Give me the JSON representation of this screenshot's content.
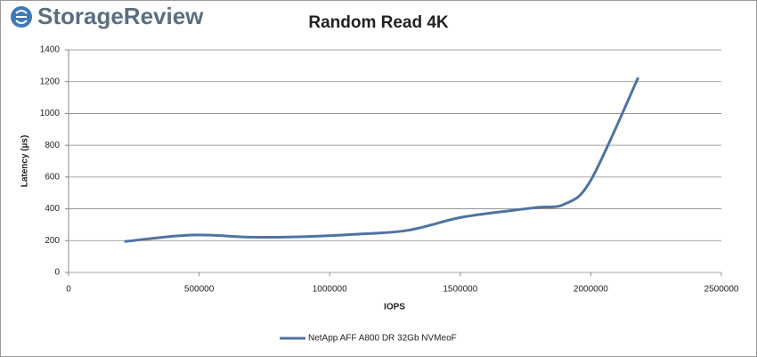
{
  "header": {
    "logo": "StorageReview"
  },
  "chart_data": {
    "type": "line",
    "title": "Random Read 4K",
    "x_label": "IOPS",
    "y_label": "Latency (µs)",
    "x": [
      218000,
      470000,
      700000,
      900000,
      1100000,
      1300000,
      1500000,
      1700000,
      1800000,
      1900000,
      2000000,
      2180000
    ],
    "series": [
      {
        "name": "NetApp AFF A800 DR 32Gb NVMeoF",
        "color": "#4f73a0",
        "values": [
          195,
          235,
          222,
          225,
          240,
          265,
          345,
          390,
          410,
          430,
          580,
          1220
        ]
      }
    ],
    "xlim": [
      0,
      2500000
    ],
    "xticks": [
      0,
      500000,
      1000000,
      1500000,
      2000000,
      2500000
    ],
    "ylim": [
      0,
      1400
    ],
    "yticks": [
      0,
      200,
      400,
      600,
      800,
      1000,
      1200,
      1400
    ],
    "grid": true,
    "smooth": true,
    "legend": "bottom"
  }
}
